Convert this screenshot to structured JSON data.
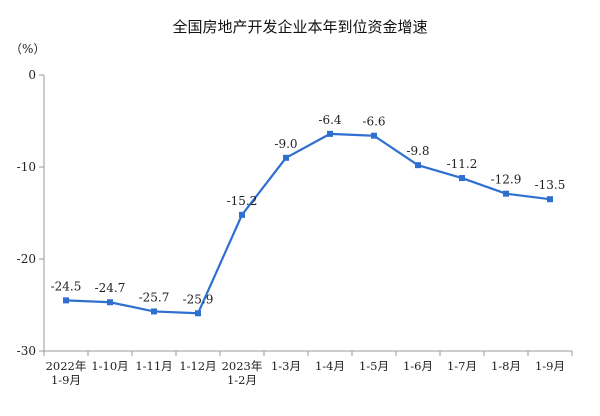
{
  "chart_data": {
    "type": "line",
    "title": "全国房地产开发企业本年到位资金增速",
    "y_unit_label": "（%）",
    "categories": [
      "2022年 1-9月",
      "1-10月",
      "1-11月",
      "1-12月",
      "2023年 1-2月",
      "1-3月",
      "1-4月",
      "1-5月",
      "1-6月",
      "1-7月",
      "1-8月",
      "1-9月"
    ],
    "category_lines": [
      [
        "2022年",
        "1-9月"
      ],
      [
        "1-10月"
      ],
      [
        "1-11月"
      ],
      [
        "1-12月"
      ],
      [
        "2023年",
        "1-2月"
      ],
      [
        "1-3月"
      ],
      [
        "1-4月"
      ],
      [
        "1-5月"
      ],
      [
        "1-6月"
      ],
      [
        "1-7月"
      ],
      [
        "1-8月"
      ],
      [
        "1-9月"
      ]
    ],
    "series": [
      {
        "values": [
          -24.5,
          -24.7,
          -25.7,
          -25.9,
          -15.2,
          -9.0,
          -6.4,
          -6.6,
          -9.8,
          -11.2,
          -12.9,
          -13.5
        ],
        "labels": [
          "-24.5",
          "-24.7",
          "-25.7",
          "-25.9",
          "-15.2",
          "-9.0",
          "-6.4",
          "-6.6",
          "-9.8",
          "-11.2",
          "-12.9",
          "-13.5"
        ],
        "color": "#2f6fd0",
        "marker": "square"
      }
    ],
    "ylim": [
      -30,
      0
    ],
    "yticks": [
      0,
      -10,
      -20,
      -30
    ],
    "ytick_labels": [
      "0",
      "-10",
      "-20",
      "-30"
    ],
    "grid": false,
    "axis_color": "#9a9a9a"
  }
}
